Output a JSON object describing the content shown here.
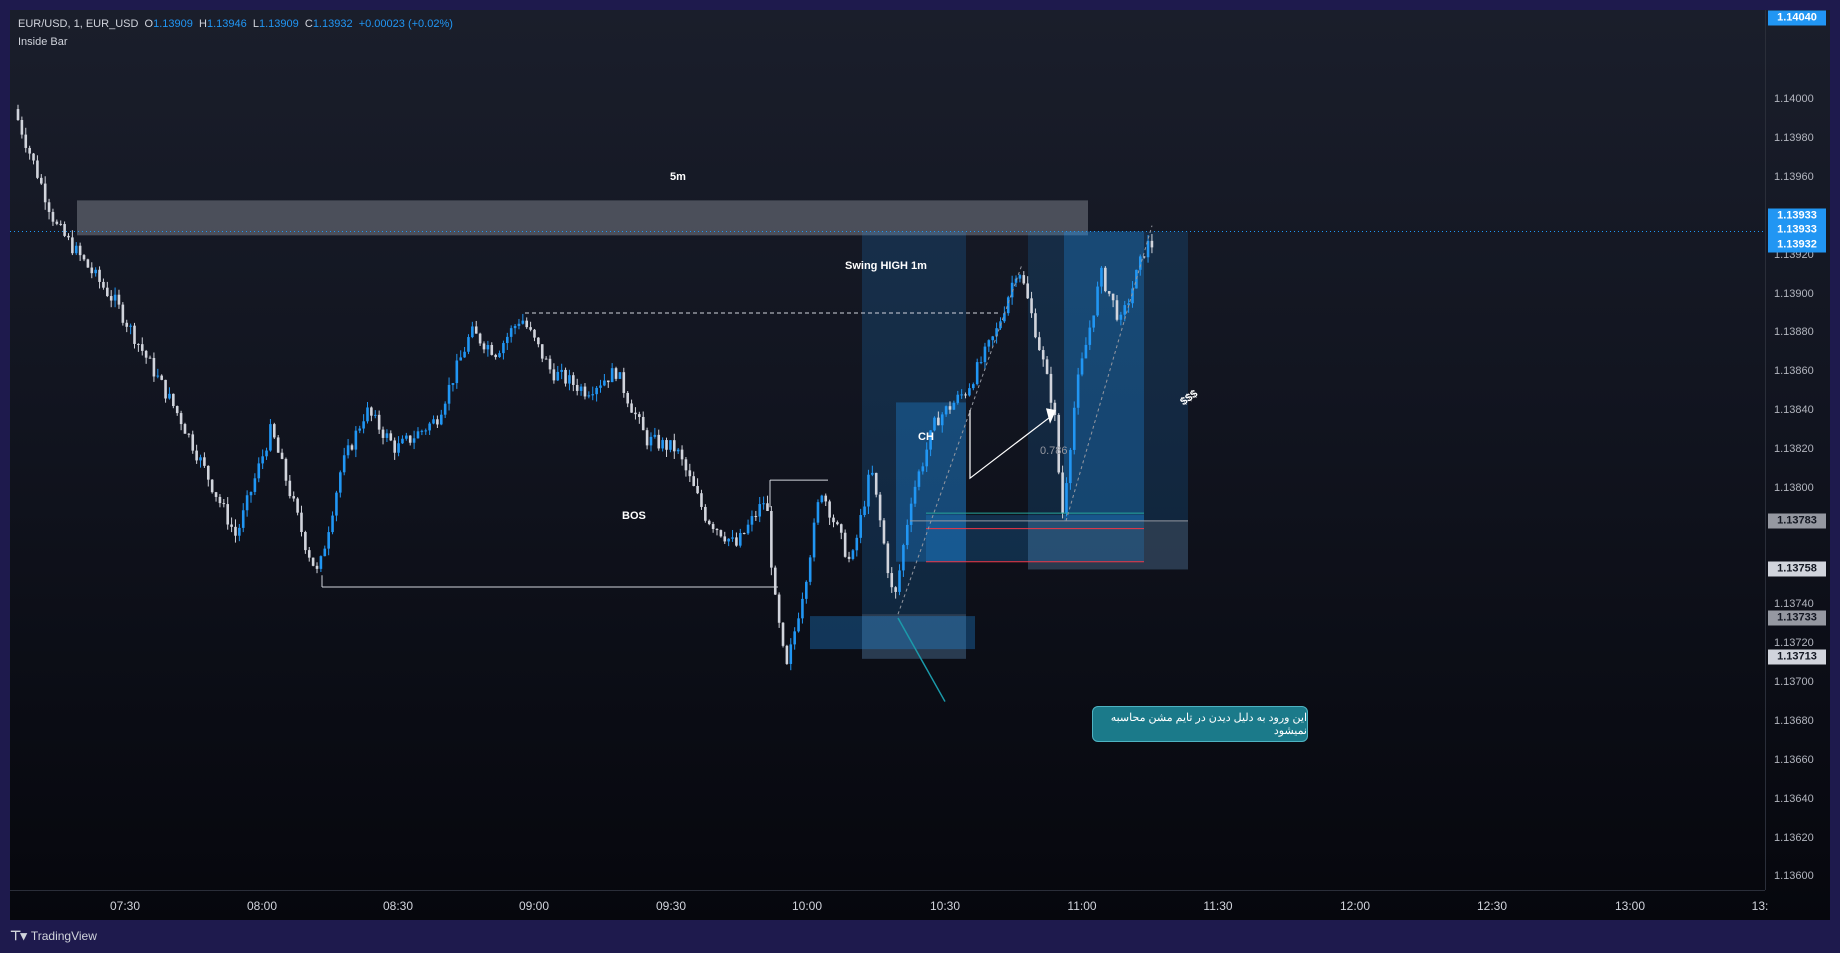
{
  "legend": {
    "symbol": "EUR/USD, 1, EUR_USD",
    "open_label": "O",
    "open": "1.13909",
    "high_label": "H",
    "high": "1.13946",
    "low_label": "L",
    "low": "1.13909",
    "close_label": "C",
    "close": "1.13932",
    "change": "+0.00023 (+0.02%)",
    "indicator": "Inside Bar"
  },
  "price_axis": {
    "ticks": [
      "1.14000",
      "1.13980",
      "1.13960",
      "1.13920",
      "1.13900",
      "1.13880",
      "1.13860",
      "1.13840",
      "1.13820",
      "1.13800",
      "1.13740",
      "1.13720",
      "1.13700",
      "1.13680",
      "1.13660",
      "1.13640",
      "1.13620",
      "1.13600"
    ],
    "tags": [
      {
        "text": "1.14040",
        "bg": "#2196f3",
        "fg": "#ffffff"
      },
      {
        "text": "1.13933",
        "bg": "#2196f3",
        "fg": "#ffffff"
      },
      {
        "text": "1.13933",
        "bg": "#2196f3",
        "fg": "#ffffff"
      },
      {
        "text": "1.13932",
        "bg": "#2196f3",
        "fg": "#ffffff"
      },
      {
        "text": "1.13783",
        "bg": "#9598a1",
        "fg": "#131722"
      },
      {
        "text": "1.13758",
        "bg": "#d1d4dc",
        "fg": "#131722"
      },
      {
        "text": "1.13733",
        "bg": "#9598a1",
        "fg": "#131722"
      },
      {
        "text": "1.13713",
        "bg": "#d1d4dc",
        "fg": "#131722"
      }
    ]
  },
  "time_axis": {
    "ticks": [
      "07:30",
      "08:00",
      "08:30",
      "09:00",
      "09:30",
      "10:00",
      "10:30",
      "11:00",
      "11:30",
      "12:00",
      "12:30",
      "13:00",
      "13:"
    ]
  },
  "annotations": {
    "zone_5m": "5m",
    "swing_high": "Swing HIGH 1m",
    "bos": "BOS",
    "ch": "CH",
    "dollar": "$$$",
    "fib": "0.786",
    "callout": "این ورود به دلیل دیدن در تایم مشن محاسبه نمیشود"
  },
  "watermark": "TradingView",
  "colors": {
    "up": "#2196f3",
    "down": "#d1d4dc",
    "background_top": "#1a1e2b",
    "background_bottom": "#06070d",
    "frame": "#1e1a4d"
  },
  "chart_data": {
    "type": "candlestick",
    "symbol": "EUR/USD",
    "interval": "1",
    "ylim": [
      1.13593,
      1.14046
    ],
    "last_price": 1.13932,
    "key_levels": {
      "swing_high_1m": 1.1389,
      "bos_level": 1.13749,
      "ch_level": 1.13804,
      "zone_5m": [
        1.13931,
        1.13948
      ],
      "range_high": 1.14
    }
  }
}
